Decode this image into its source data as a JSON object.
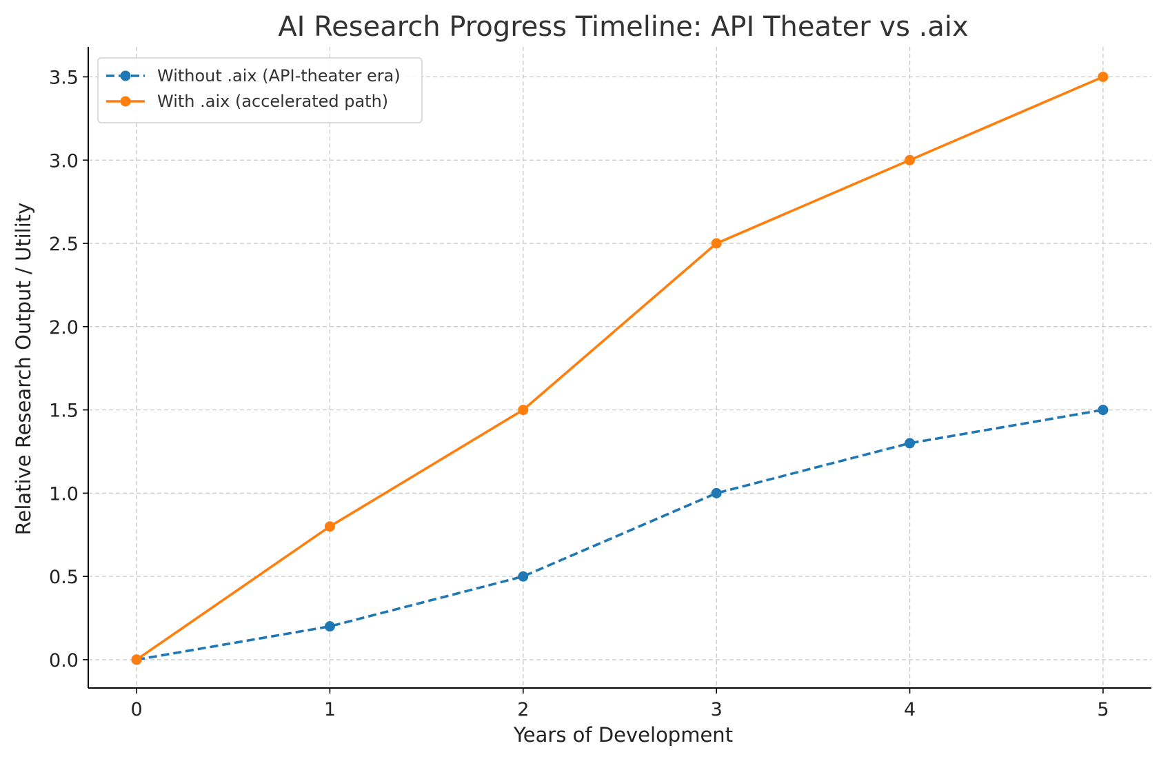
{
  "chart_data": {
    "type": "line",
    "title": "AI Research Progress Timeline: API Theater vs .aix",
    "xlabel": "Years of Development",
    "ylabel": "Relative Research Output / Utility",
    "x": [
      0,
      1,
      2,
      3,
      4,
      5
    ],
    "xlim": [
      -0.25,
      5.25
    ],
    "ylim": [
      -0.17,
      3.68
    ],
    "xticks": [
      "0",
      "1",
      "2",
      "3",
      "4",
      "5"
    ],
    "yticks": [
      "0.0",
      "0.5",
      "1.0",
      "1.5",
      "2.0",
      "2.5",
      "3.0",
      "3.5"
    ],
    "grid": true,
    "legend_position": "top-left",
    "series": [
      {
        "name": "Without .aix (API-theater era)",
        "values": [
          0,
          0.2,
          0.5,
          1.0,
          1.3,
          1.5
        ],
        "color": "#1f77b4",
        "line_style": "dashed",
        "marker": "circle"
      },
      {
        "name": "With .aix (accelerated path)",
        "values": [
          0,
          0.8,
          1.5,
          2.5,
          3.0,
          3.5
        ],
        "color": "#ff7f0e",
        "line_style": "solid",
        "marker": "circle"
      }
    ]
  }
}
